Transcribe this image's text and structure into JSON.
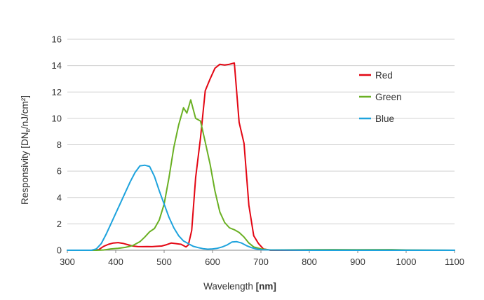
{
  "chart_data": {
    "type": "line",
    "xlabel_main": "Wavelength ",
    "xlabel_unit": "[nm]",
    "ylabel_main": "Responsivity [DN",
    "ylabel_sub": "8",
    "ylabel_rest": "/nJ/cm²]",
    "xlim": [
      300,
      1100
    ],
    "ylim": [
      0,
      16
    ],
    "xticks": [
      300,
      400,
      500,
      600,
      700,
      800,
      900,
      1000,
      1100
    ],
    "yticks": [
      0,
      2,
      4,
      6,
      8,
      10,
      12,
      14,
      16
    ],
    "grid": "horizontal",
    "legend_position": "top-right",
    "series": [
      {
        "name": "Red",
        "color": "#e30613",
        "x": [
          300,
          350,
          365,
          375,
          385,
          395,
          405,
          415,
          425,
          435,
          445,
          455,
          465,
          475,
          485,
          495,
          505,
          515,
          525,
          535,
          545,
          550,
          557,
          565,
          575,
          585,
          595,
          605,
          615,
          625,
          635,
          645,
          655,
          665,
          675,
          685,
          695,
          705,
          720,
          800,
          900,
          1000,
          1100
        ],
        "y": [
          0,
          0,
          0.05,
          0.3,
          0.45,
          0.55,
          0.58,
          0.52,
          0.42,
          0.32,
          0.28,
          0.27,
          0.28,
          0.27,
          0.3,
          0.32,
          0.42,
          0.55,
          0.5,
          0.45,
          0.25,
          0.4,
          1.5,
          5.5,
          8.5,
          12.1,
          13,
          13.8,
          14.1,
          14.05,
          14.1,
          14.2,
          9.7,
          8.1,
          3.4,
          1.1,
          0.5,
          0.1,
          0,
          0,
          0,
          0,
          0
        ]
      },
      {
        "name": "Green",
        "color": "#6ab023",
        "x": [
          300,
          360,
          375,
          390,
          405,
          420,
          435,
          450,
          460,
          470,
          480,
          490,
          500,
          510,
          520,
          530,
          540,
          547,
          555,
          565,
          575,
          585,
          595,
          605,
          615,
          625,
          635,
          645,
          655,
          665,
          675,
          685,
          700,
          720,
          800,
          850,
          900,
          970,
          1000,
          1100
        ],
        "y": [
          0,
          0,
          0.02,
          0.1,
          0.15,
          0.22,
          0.35,
          0.65,
          1.0,
          1.4,
          1.65,
          2.3,
          3.5,
          5.5,
          7.8,
          9.5,
          10.8,
          10.4,
          11.4,
          10,
          9.8,
          8.2,
          6.5,
          4.5,
          2.9,
          2.1,
          1.7,
          1.55,
          1.35,
          1.0,
          0.55,
          0.25,
          0.1,
          0.02,
          0.04,
          0.05,
          0.04,
          0.05,
          0.02,
          0
        ]
      },
      {
        "name": "Blue",
        "color": "#1ea3dd",
        "x": [
          300,
          350,
          360,
          370,
          380,
          390,
          400,
          410,
          420,
          430,
          440,
          450,
          460,
          470,
          480,
          490,
          500,
          510,
          520,
          530,
          540,
          550,
          560,
          570,
          580,
          590,
          600,
          610,
          620,
          630,
          640,
          650,
          660,
          670,
          680,
          690,
          700,
          720,
          800,
          900,
          1000,
          1100
        ],
        "y": [
          0,
          0,
          0.1,
          0.5,
          1.2,
          2.0,
          2.8,
          3.6,
          4.4,
          5.2,
          5.9,
          6.4,
          6.45,
          6.35,
          5.6,
          4.5,
          3.5,
          2.5,
          1.7,
          1.1,
          0.7,
          0.5,
          0.3,
          0.2,
          0.12,
          0.08,
          0.1,
          0.15,
          0.25,
          0.4,
          0.62,
          0.65,
          0.55,
          0.35,
          0.2,
          0.1,
          0.05,
          0.02,
          0,
          0,
          0,
          0
        ]
      }
    ]
  }
}
